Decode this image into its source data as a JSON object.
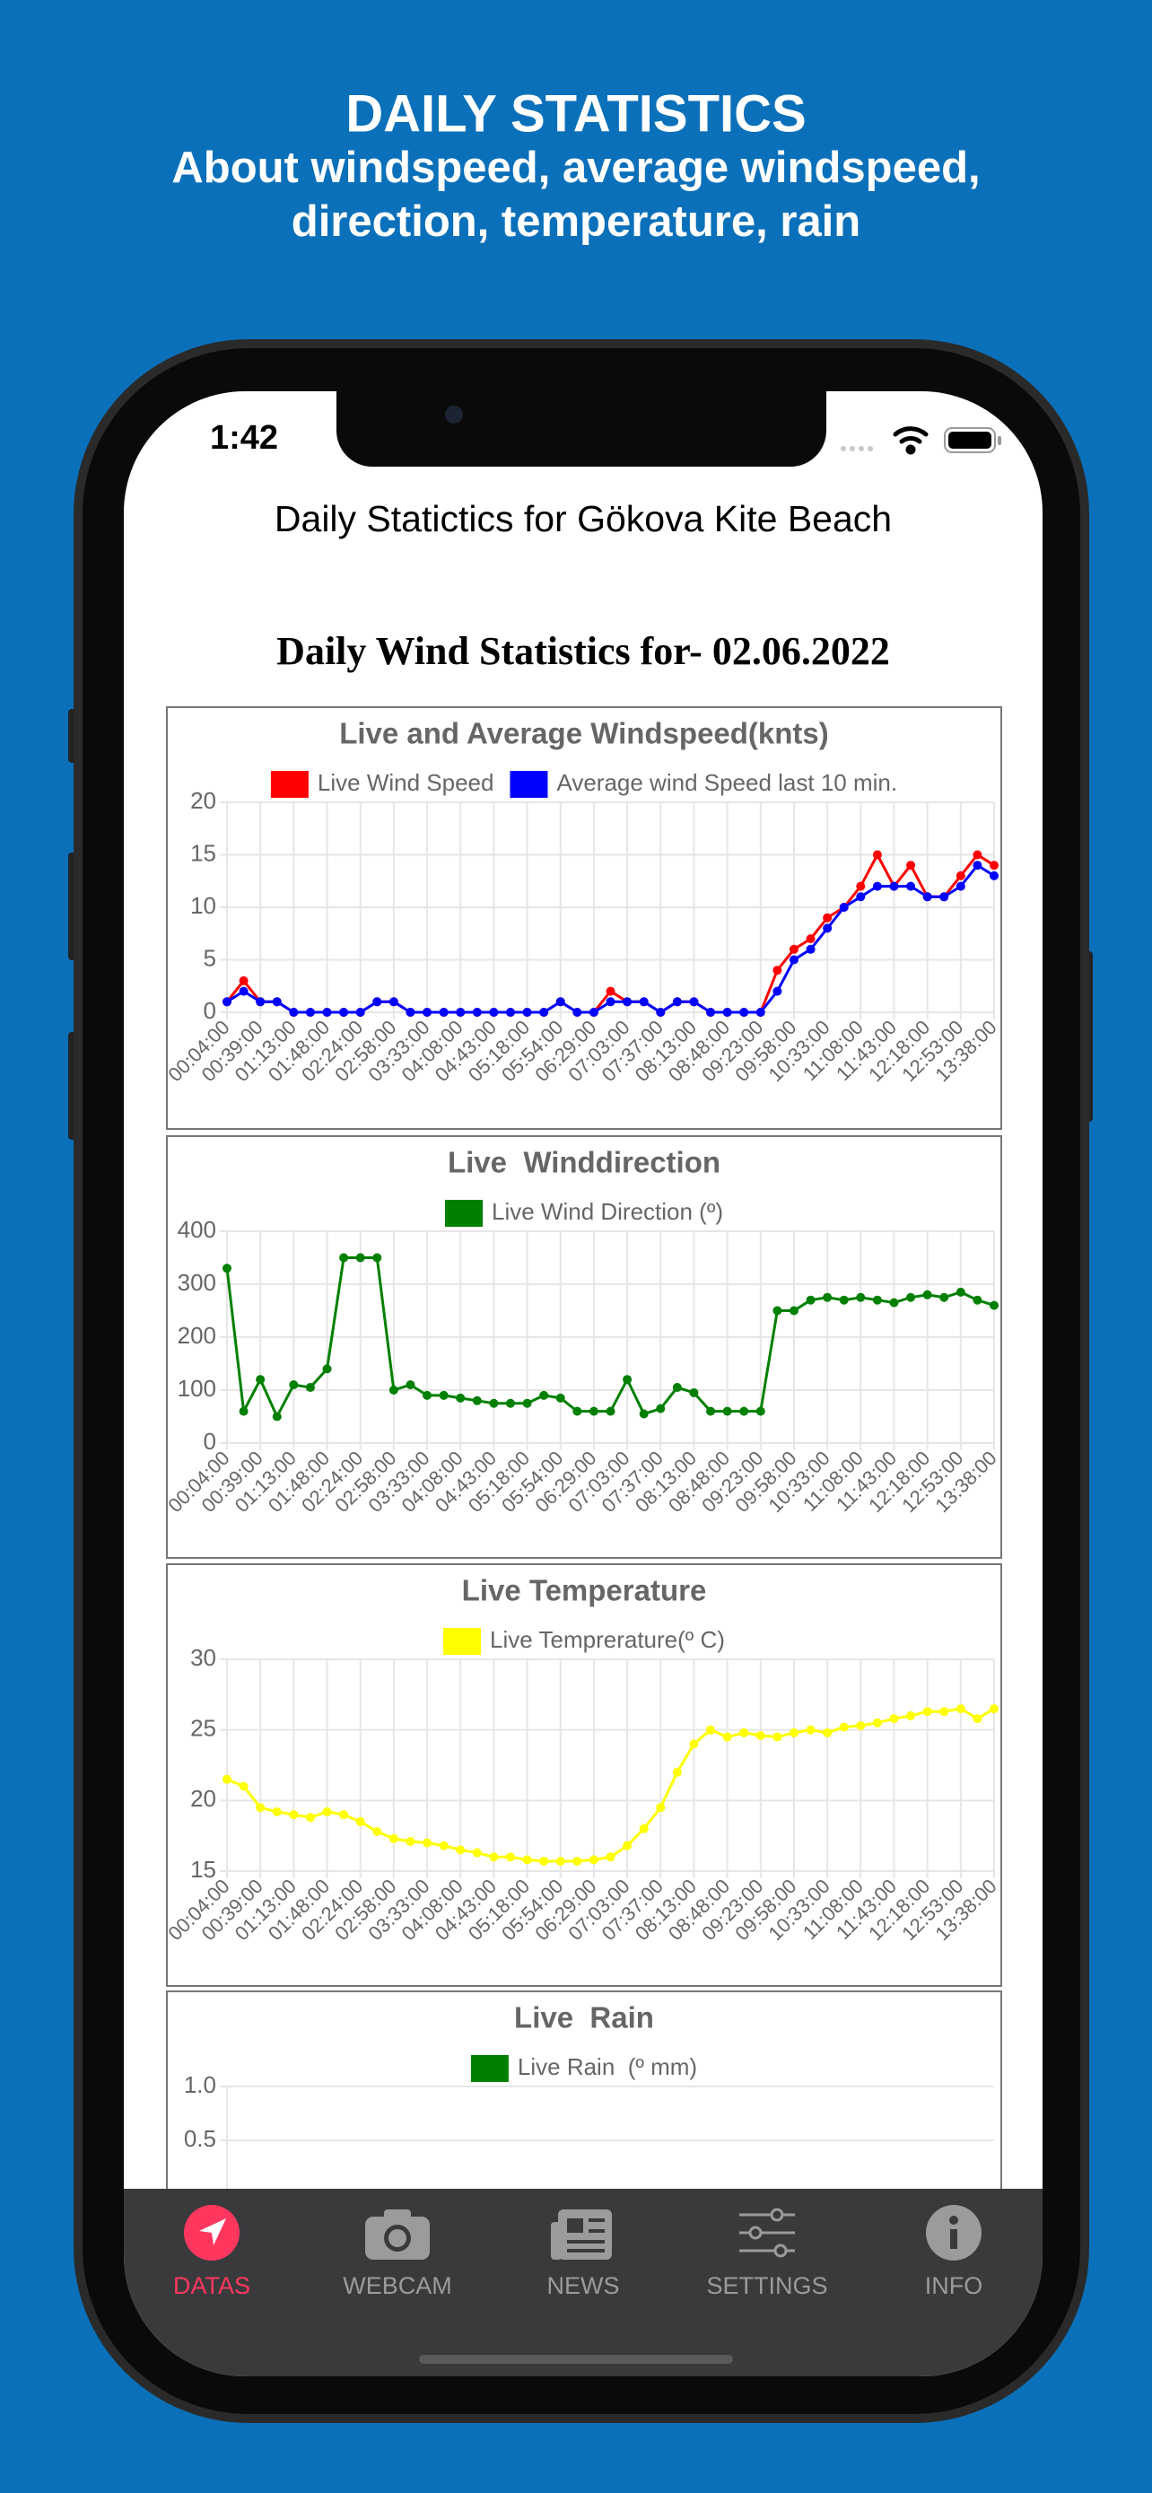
{
  "header": {
    "title": "DAILY STATISTICS",
    "subtitle_lines": [
      "About windspeed, average windspeed,",
      "direction, temperature, rain"
    ]
  },
  "status_bar": {
    "time": "1:42"
  },
  "app_title": "Daily Statictics for Gökova Kite Beach",
  "page_heading": "Daily Wind Statistics for- 02.06.2022",
  "chart_data": [
    {
      "type": "line",
      "title": "Live and Average Windspeed(knts)",
      "categories": [
        "00:04:00",
        null,
        "00:39:00",
        null,
        "01:13:00",
        null,
        "01:48:00",
        null,
        "02:24:00",
        null,
        "02:58:00",
        null,
        "03:33:00",
        null,
        "04:08:00",
        null,
        "04:43:00",
        null,
        "05:18:00",
        null,
        "05:54:00",
        null,
        "06:29:00",
        null,
        "07:03:00",
        null,
        "07:37:00",
        null,
        "08:13:00",
        null,
        "08:48:00",
        null,
        "09:23:00",
        null,
        "09:58:00",
        null,
        "10:33:00",
        null,
        "11:08:00",
        null,
        "11:43:00",
        null,
        "12:18:00",
        null,
        "12:53:00",
        null,
        "13:38:00"
      ],
      "series": [
        {
          "name": "Live Wind Speed",
          "color": "#ff0000",
          "values": [
            1,
            3,
            1,
            1,
            0,
            0,
            0,
            0,
            0,
            1,
            1,
            0,
            0,
            0,
            0,
            0,
            0,
            0,
            0,
            0,
            1,
            0,
            0,
            2,
            1,
            1,
            0,
            1,
            1,
            0,
            0,
            0,
            0,
            4,
            6,
            7,
            9,
            10,
            12,
            15,
            12,
            14,
            11,
            11,
            13,
            15,
            14
          ]
        },
        {
          "name": "Average wind Speed last 10 min.",
          "color": "#0000ff",
          "values": [
            1,
            2,
            1,
            1,
            0,
            0,
            0,
            0,
            0,
            1,
            1,
            0,
            0,
            0,
            0,
            0,
            0,
            0,
            0,
            0,
            1,
            0,
            0,
            1,
            1,
            1,
            0,
            1,
            1,
            0,
            0,
            0,
            0,
            2,
            5,
            6,
            8,
            10,
            11,
            12,
            12,
            12,
            11,
            11,
            12,
            14,
            13
          ]
        }
      ],
      "ylim": [
        0,
        20
      ],
      "yticks": [
        0,
        5,
        10,
        15,
        20
      ],
      "grid": true
    },
    {
      "type": "line",
      "title": "Live  Winddirection",
      "categories": [
        "00:04:00",
        null,
        "00:39:00",
        null,
        "01:13:00",
        null,
        "01:48:00",
        null,
        "02:24:00",
        null,
        "02:58:00",
        null,
        "03:33:00",
        null,
        "04:08:00",
        null,
        "04:43:00",
        null,
        "05:18:00",
        null,
        "05:54:00",
        null,
        "06:29:00",
        null,
        "07:03:00",
        null,
        "07:37:00",
        null,
        "08:13:00",
        null,
        "08:48:00",
        null,
        "09:23:00",
        null,
        "09:58:00",
        null,
        "10:33:00",
        null,
        "11:08:00",
        null,
        "11:43:00",
        null,
        "12:18:00",
        null,
        "12:53:00",
        null,
        "13:38:00"
      ],
      "series": [
        {
          "name": "Live Wind Direction (º)",
          "color": "#008000",
          "values": [
            330,
            60,
            120,
            50,
            110,
            105,
            140,
            350,
            350,
            350,
            100,
            110,
            90,
            90,
            85,
            80,
            75,
            75,
            75,
            90,
            85,
            60,
            60,
            60,
            120,
            55,
            65,
            105,
            95,
            60,
            60,
            60,
            60,
            250,
            250,
            270,
            275,
            270,
            275,
            270,
            265,
            275,
            280,
            275,
            285,
            270,
            260
          ]
        }
      ],
      "ylim": [
        0,
        400
      ],
      "yticks": [
        0,
        100,
        200,
        300,
        400
      ],
      "grid": true
    },
    {
      "type": "line",
      "title": "Live Temperature",
      "categories": [
        "00:04:00",
        null,
        "00:39:00",
        null,
        "01:13:00",
        null,
        "01:48:00",
        null,
        "02:24:00",
        null,
        "02:58:00",
        null,
        "03:33:00",
        null,
        "04:08:00",
        null,
        "04:43:00",
        null,
        "05:18:00",
        null,
        "05:54:00",
        null,
        "06:29:00",
        null,
        "07:03:00",
        null,
        "07:37:00",
        null,
        "08:13:00",
        null,
        "08:48:00",
        null,
        "09:23:00",
        null,
        "09:58:00",
        null,
        "10:33:00",
        null,
        "11:08:00",
        null,
        "11:43:00",
        null,
        "12:18:00",
        null,
        "12:53:00",
        null,
        "13:38:00"
      ],
      "series": [
        {
          "name": "Live Temprerature(º C)",
          "color": "#ffff00",
          "values": [
            21.5,
            21,
            19.5,
            19.2,
            19,
            18.8,
            19.2,
            19,
            18.5,
            17.8,
            17.3,
            17.1,
            17,
            16.8,
            16.5,
            16.3,
            16,
            16,
            15.8,
            15.7,
            15.7,
            15.7,
            15.8,
            16,
            16.8,
            18,
            19.5,
            22,
            24,
            25,
            24.5,
            24.8,
            24.6,
            24.5,
            24.8,
            25,
            24.8,
            25.2,
            25.3,
            25.5,
            25.8,
            26,
            26.3,
            26.3,
            26.5,
            25.8,
            26.5
          ]
        }
      ],
      "ylim": [
        15,
        30
      ],
      "yticks": [
        15,
        20,
        25,
        30
      ],
      "grid": true
    },
    {
      "type": "line",
      "title": "Live  Rain",
      "series": [
        {
          "name": "Live Rain  (º mm)",
          "color": "#008000"
        }
      ],
      "ylim": [
        0,
        1
      ],
      "yticks": [
        {
          "value": 1,
          "label": "1.0"
        },
        {
          "value": 0.5,
          "label": "0.5"
        }
      ],
      "grid": true
    }
  ],
  "tab_bar": {
    "items": [
      {
        "label": "DATAS",
        "active": true
      },
      {
        "label": "WEBCAM",
        "active": false
      },
      {
        "label": "NEWS",
        "active": false
      },
      {
        "label": "SETTINGS",
        "active": false
      },
      {
        "label": "INFO",
        "active": false
      }
    ]
  }
}
